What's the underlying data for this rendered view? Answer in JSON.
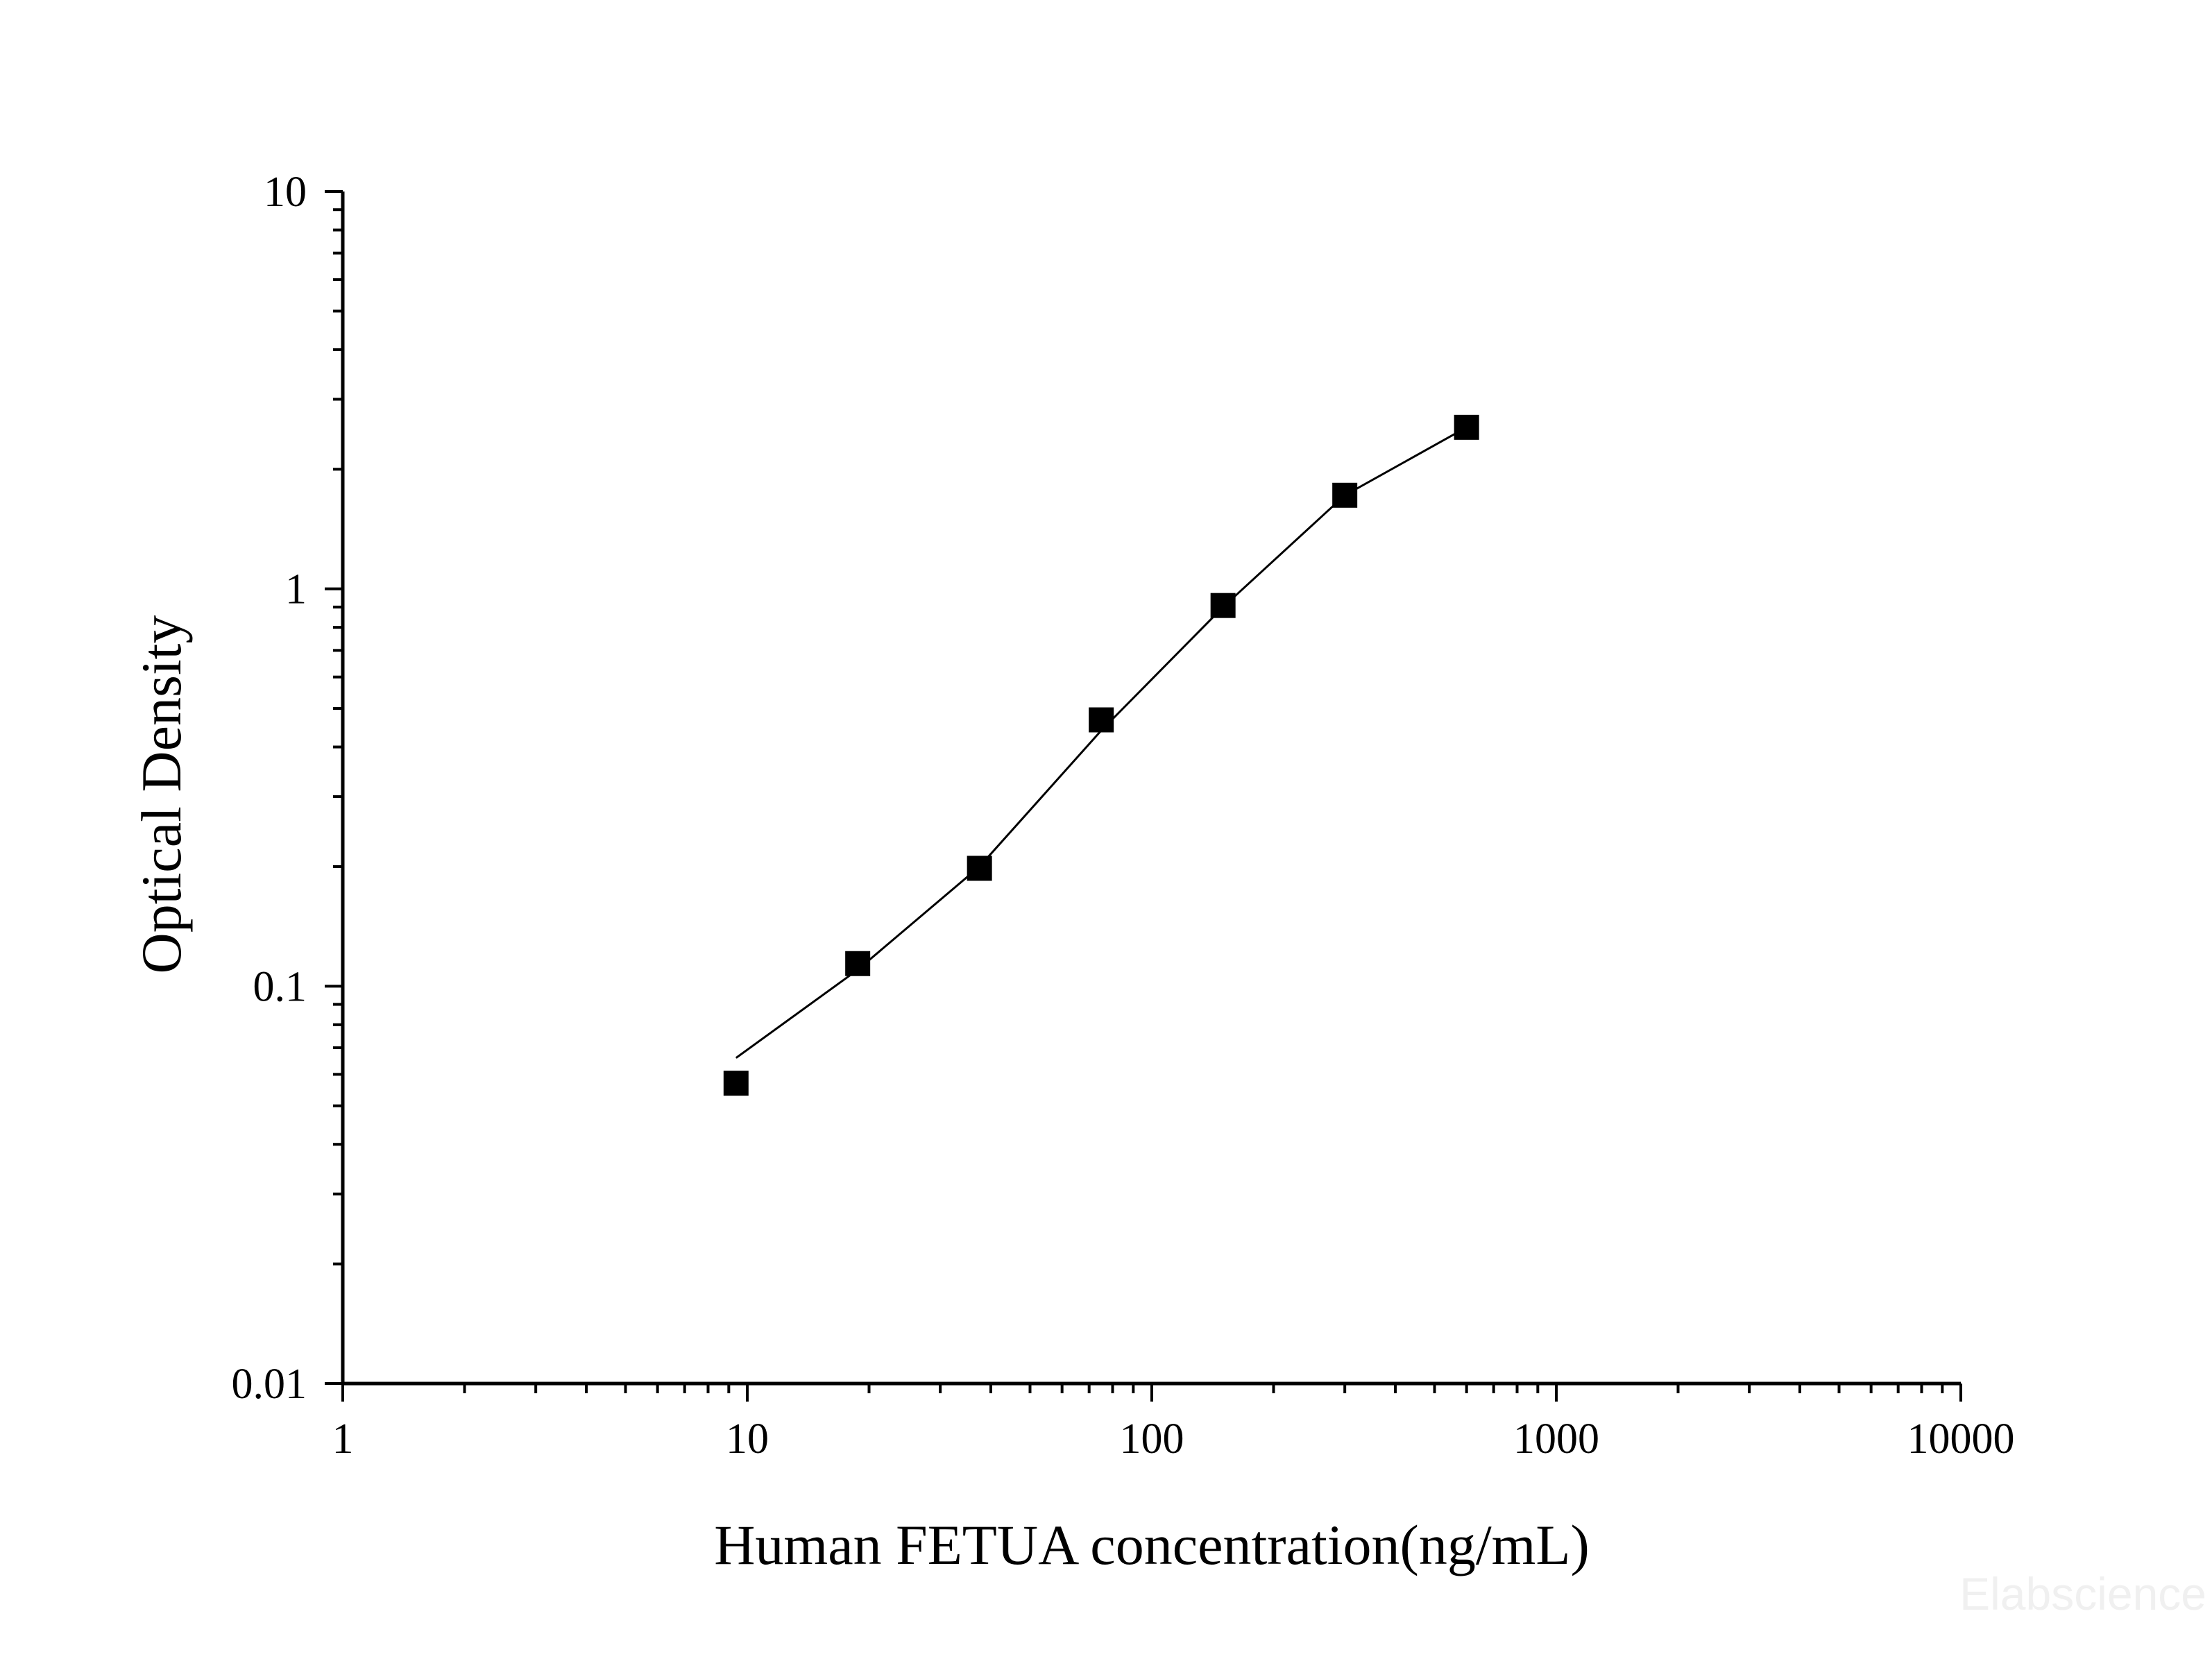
{
  "chart_data": {
    "type": "scatter",
    "xlabel": "Human FETUA concentration(ng/mL)",
    "ylabel": "Optical Density",
    "x_scale": "log",
    "y_scale": "log",
    "xlim": [
      1,
      10000
    ],
    "ylim": [
      0.01,
      10
    ],
    "x_ticks": [
      1,
      10,
      100,
      1000,
      10000
    ],
    "x_tick_labels": [
      "1",
      "10",
      "100",
      "1000",
      "10000"
    ],
    "y_ticks": [
      0.01,
      0.1,
      1,
      10
    ],
    "y_tick_labels": [
      "0.01",
      "0.1",
      "1",
      "10"
    ],
    "grid": false,
    "series": [
      {
        "marker": "square",
        "color": "#000000",
        "x": [
          9.38,
          18.75,
          37.5,
          75,
          150,
          300,
          600
        ],
        "y": [
          0.057,
          0.114,
          0.198,
          0.468,
          0.908,
          1.72,
          2.55
        ]
      }
    ],
    "fit_curve": {
      "style": "line",
      "color": "#000000",
      "x": [
        9.38,
        18.75,
        37.5,
        75,
        150,
        300,
        600
      ],
      "y": [
        0.066,
        0.11,
        0.2,
        0.44,
        0.9,
        1.72,
        2.55
      ]
    }
  },
  "watermark": "Elabscience"
}
